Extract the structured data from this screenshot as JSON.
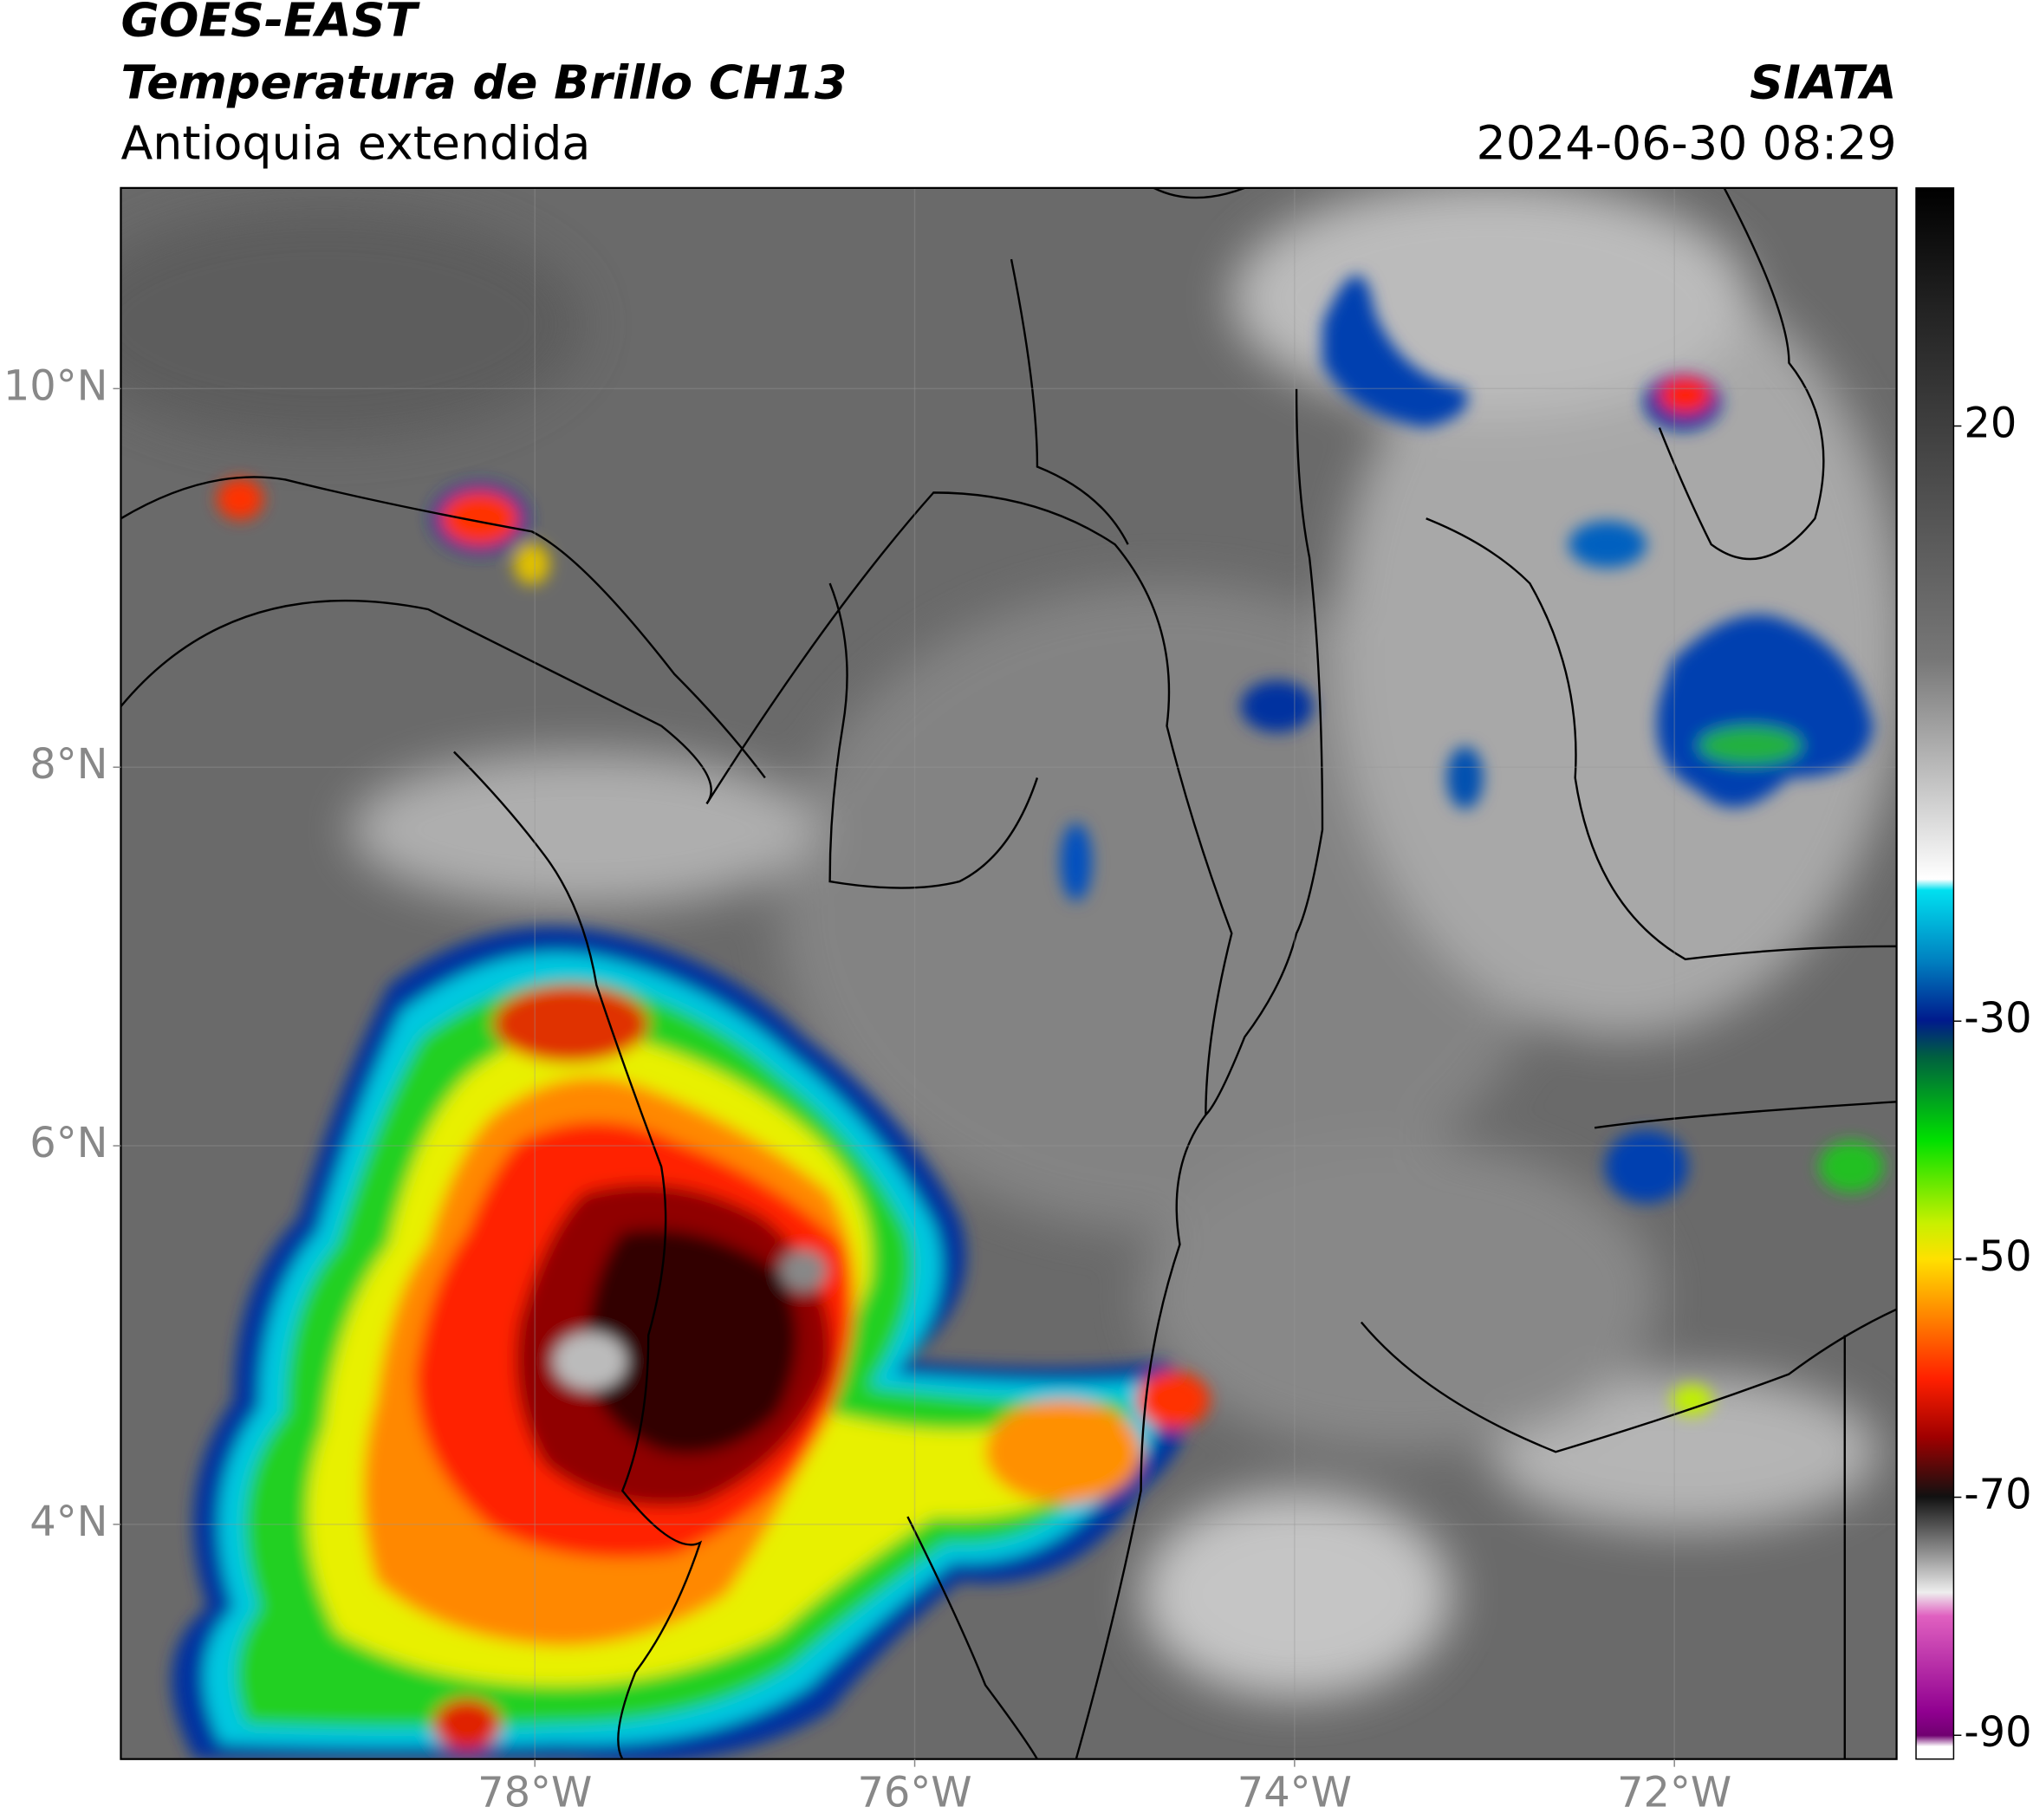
{
  "header": {
    "title": "GOES-EAST",
    "subtitle": "Temperatura de Brillo CH13",
    "region": "Antioquia extendida",
    "source": "SIATA",
    "datetime": "2024-06-30 08:29"
  },
  "map": {
    "xlim": [
      -80.18,
      -70.83
    ],
    "ylim": [
      2.76,
      11.06
    ],
    "xticks": [
      {
        "value": -78,
        "label": "78°W"
      },
      {
        "value": -76,
        "label": "76°W"
      },
      {
        "value": -74,
        "label": "74°W"
      },
      {
        "value": -72,
        "label": "72°W"
      }
    ],
    "yticks": [
      {
        "value": 4,
        "label": "4°N"
      },
      {
        "value": 6,
        "label": "6°N"
      },
      {
        "value": 8,
        "label": "8°N"
      },
      {
        "value": 10,
        "label": "10°N"
      }
    ]
  },
  "colorbar": {
    "clim": [
      -92,
      40
    ],
    "ticks": [
      20,
      -30,
      -50,
      -70,
      -90
    ]
  }
}
